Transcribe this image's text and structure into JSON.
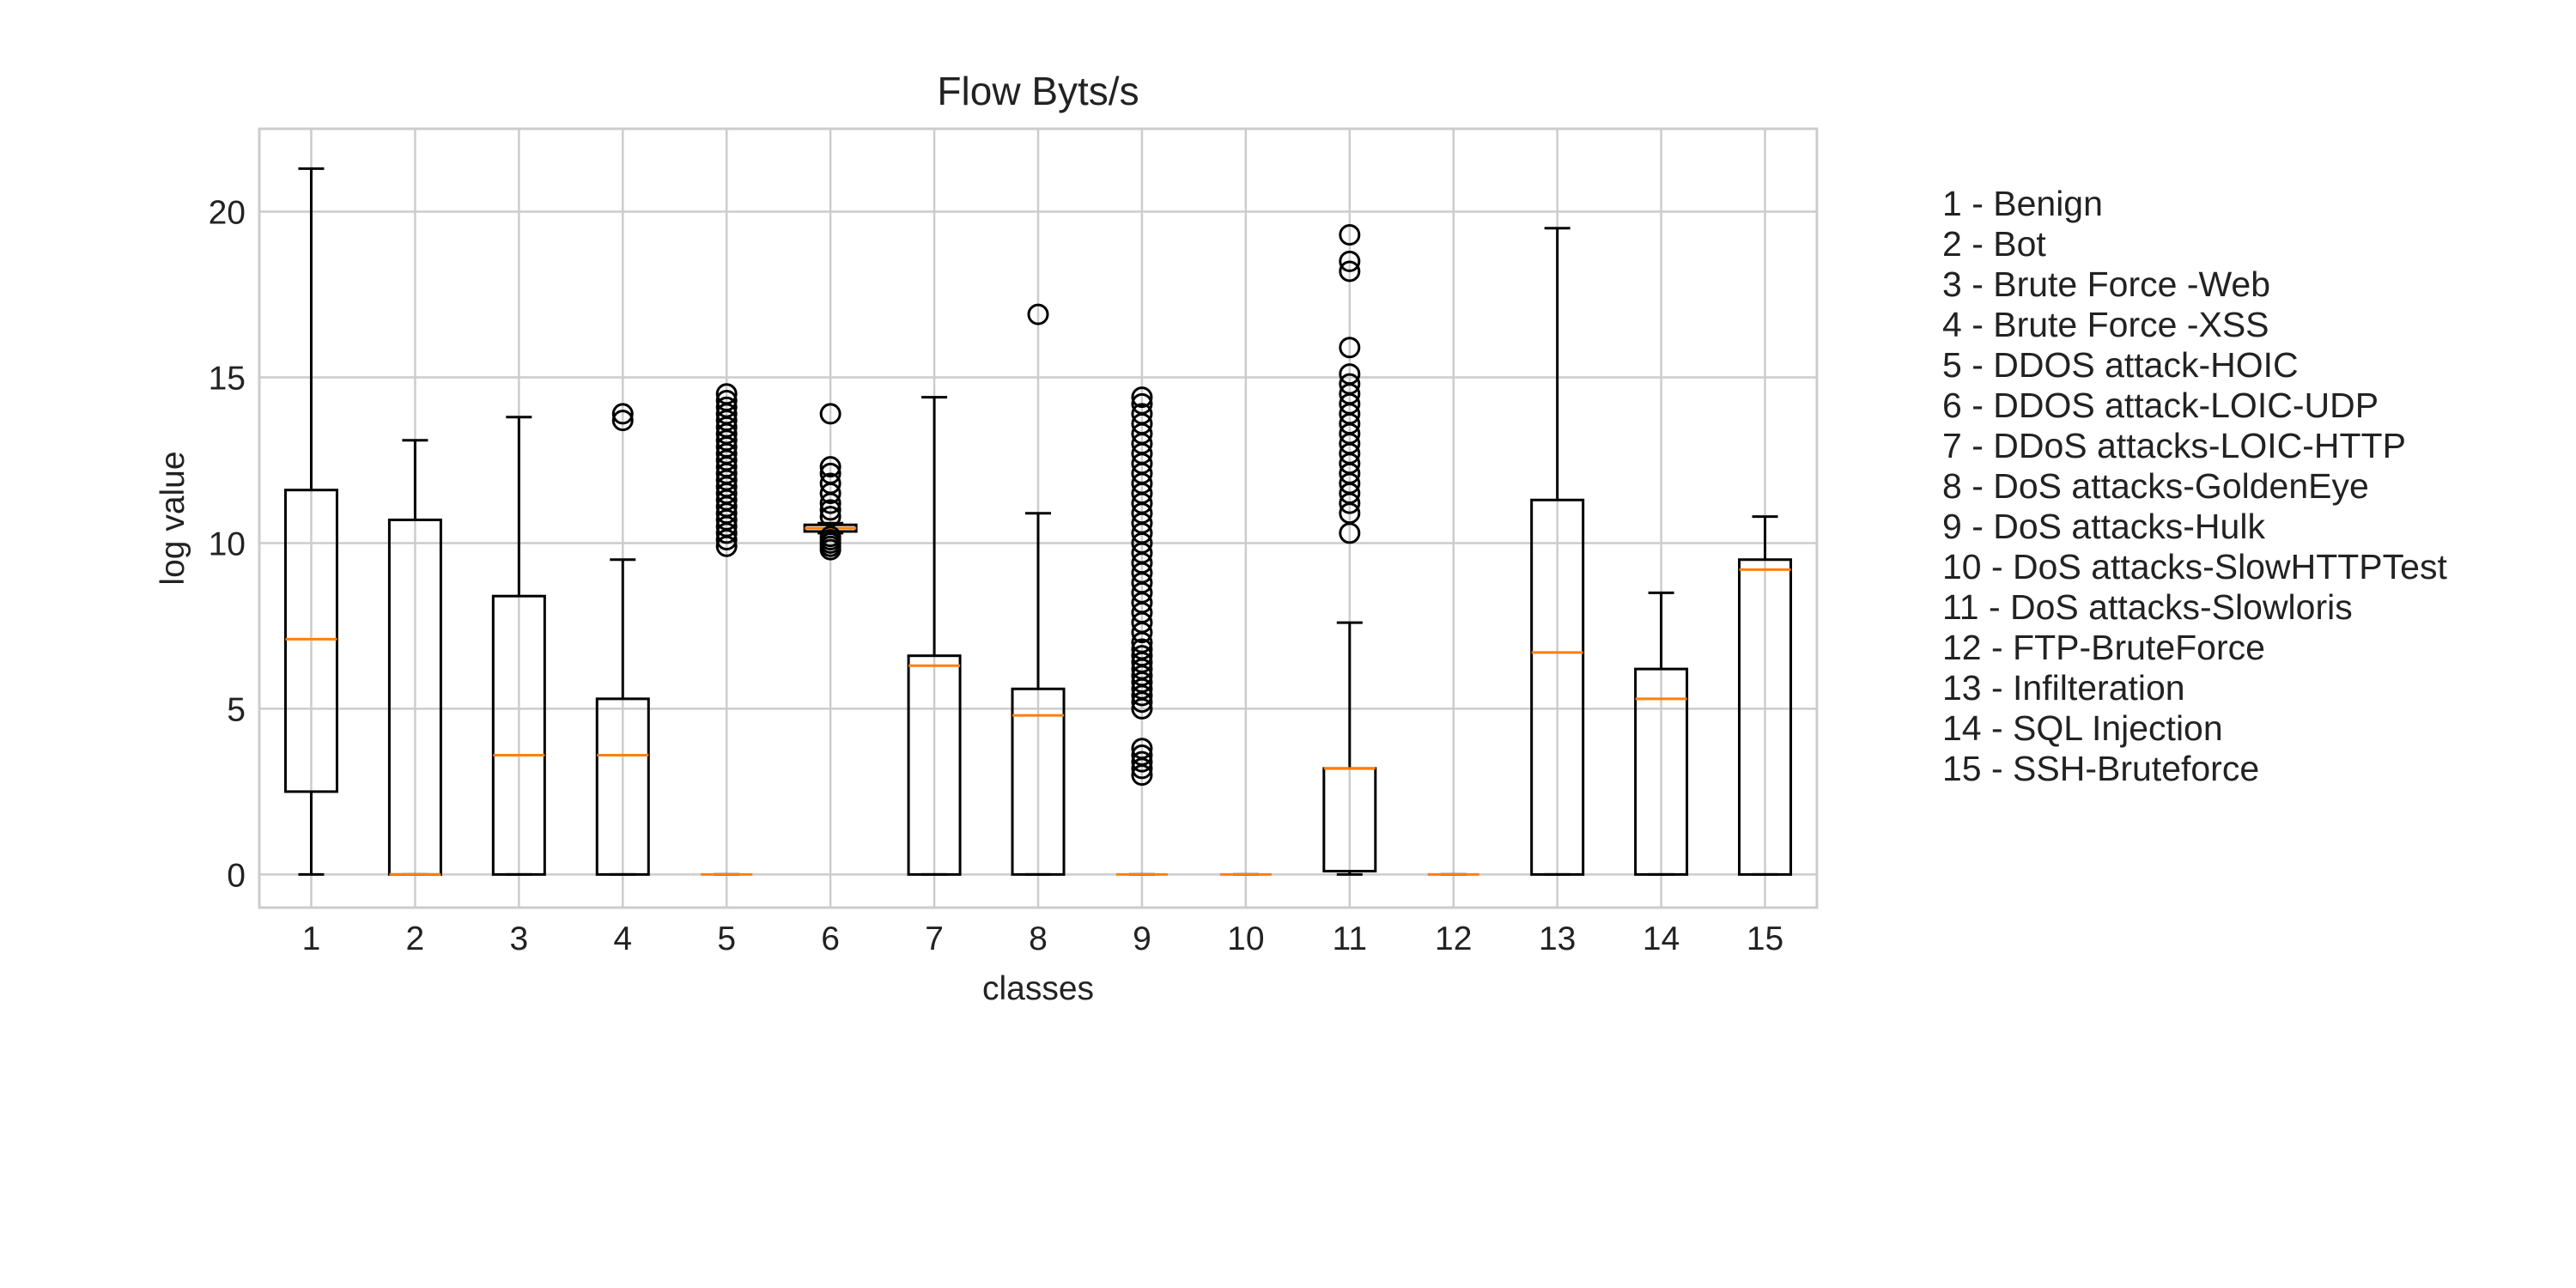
{
  "chart_data": {
    "type": "box",
    "title": "Flow Byts/s",
    "xlabel": "classes",
    "ylabel": "log value",
    "ylim": [
      -1,
      22.5
    ],
    "yticks": [
      0,
      5,
      10,
      15,
      20
    ],
    "grid": true,
    "colors": {
      "box": "#000000",
      "median": "#ff7f0e",
      "grid": "#cccccc"
    },
    "categories": [
      "1",
      "2",
      "3",
      "4",
      "5",
      "6",
      "7",
      "8",
      "9",
      "10",
      "11",
      "12",
      "13",
      "14",
      "15"
    ],
    "boxes": [
      {
        "min": 0,
        "q1": 2.5,
        "median": 7.1,
        "q3": 11.6,
        "max": 21.3,
        "outliers": []
      },
      {
        "min": 0,
        "q1": 0,
        "median": 0,
        "q3": 10.7,
        "max": 13.1,
        "outliers": []
      },
      {
        "min": 0,
        "q1": 0,
        "median": 3.6,
        "q3": 8.4,
        "max": 13.8,
        "outliers": []
      },
      {
        "min": 0,
        "q1": 0,
        "median": 3.6,
        "q3": 5.3,
        "max": 9.5,
        "outliers": [
          13.7,
          13.9
        ]
      },
      {
        "min": 0,
        "q1": 0,
        "median": 0,
        "q3": 0,
        "max": 0,
        "outliers": [
          9.9,
          10.1,
          10.3,
          10.5,
          10.7,
          10.9,
          11.1,
          11.3,
          11.5,
          11.7,
          11.9,
          12.1,
          12.3,
          12.5,
          12.7,
          12.9,
          13.1,
          13.3,
          13.5,
          13.7,
          13.9,
          14.1,
          14.3,
          14.5
        ]
      },
      {
        "min": 10.3,
        "q1": 10.35,
        "median": 10.45,
        "q3": 10.55,
        "max": 10.6,
        "outliers": [
          9.8,
          9.9,
          10.0,
          10.1,
          10.2,
          10.8,
          11.0,
          11.2,
          11.5,
          11.8,
          12.1,
          12.3,
          13.9
        ]
      },
      {
        "min": 0,
        "q1": 0,
        "median": 6.3,
        "q3": 6.6,
        "max": 14.4,
        "outliers": []
      },
      {
        "min": 0,
        "q1": 0,
        "median": 4.8,
        "q3": 5.6,
        "max": 10.9,
        "outliers": [
          16.9
        ]
      },
      {
        "min": 0,
        "q1": 0,
        "median": 0,
        "q3": 0,
        "max": 0,
        "outliers": [
          3.0,
          3.2,
          3.4,
          3.6,
          3.8,
          5.0,
          5.2,
          5.4,
          5.6,
          5.8,
          6.0,
          6.2,
          6.4,
          6.6,
          6.8,
          7.0,
          7.3,
          7.6,
          7.9,
          8.2,
          8.5,
          8.8,
          9.1,
          9.4,
          9.7,
          10.0,
          10.3,
          10.6,
          10.9,
          11.2,
          11.5,
          11.8,
          12.1,
          12.4,
          12.7,
          13.0,
          13.3,
          13.6,
          13.9,
          14.2,
          14.4
        ]
      },
      {
        "min": 0,
        "q1": 0,
        "median": 0,
        "q3": 0,
        "max": 0,
        "outliers": []
      },
      {
        "min": 0,
        "q1": 0.1,
        "median": 3.2,
        "q3": 3.2,
        "max": 7.6,
        "outliers": [
          10.3,
          10.9,
          11.2,
          11.5,
          11.8,
          12.1,
          12.4,
          12.7,
          13.0,
          13.3,
          13.6,
          13.9,
          14.2,
          14.5,
          14.8,
          15.1,
          15.9,
          18.2,
          18.5,
          19.3
        ]
      },
      {
        "min": 0,
        "q1": 0,
        "median": 0,
        "q3": 0,
        "max": 0,
        "outliers": []
      },
      {
        "min": 0,
        "q1": 0,
        "median": 6.7,
        "q3": 11.3,
        "max": 19.5,
        "outliers": []
      },
      {
        "min": 0,
        "q1": 0,
        "median": 5.3,
        "q3": 6.2,
        "max": 8.5,
        "outliers": []
      },
      {
        "min": 0,
        "q1": 0,
        "median": 9.2,
        "q3": 9.5,
        "max": 10.8,
        "outliers": []
      }
    ],
    "legend_text": [
      "1 - Benign",
      "2 - Bot",
      "3 - Brute Force -Web",
      "4 - Brute Force -XSS",
      "5 - DDOS attack-HOIC",
      "6 - DDOS attack-LOIC-UDP",
      "7 - DDoS attacks-LOIC-HTTP",
      "8 - DoS attacks-GoldenEye",
      "9 - DoS attacks-Hulk",
      "10 - DoS attacks-SlowHTTPTest",
      "11 - DoS attacks-Slowloris",
      "12 - FTP-BruteForce",
      "13 - Infilteration",
      "14 - SQL Injection",
      "15 - SSH-Bruteforce"
    ],
    "legend_placement": "right"
  }
}
